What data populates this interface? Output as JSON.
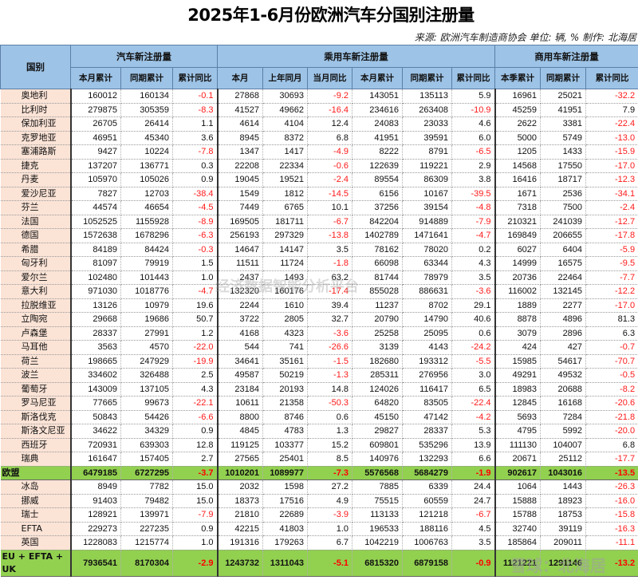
{
  "title": "2025年1-6月份欧洲汽车分国别注册量",
  "source": "来源: 欧洲汽车制造商协会 单位: 辆, % 制作: 北海居",
  "header": {
    "country": "国别",
    "groups": [
      "汽车新注册量",
      "乘用车新注册量",
      "商用车新注册量"
    ],
    "subcolumns": [
      "本月累计",
      "同期累计",
      "累计同比",
      "本月",
      "上年同月",
      "当月同比",
      "本月累计",
      "同期累计",
      "累计同比",
      "本季累计",
      "同期累计",
      "累计同比"
    ]
  },
  "rows": [
    {
      "name": "奥地利",
      "v": [
        "160012",
        "160134",
        "-0.1",
        "27868",
        "30693",
        "-9.2",
        "143051",
        "135113",
        "5.9",
        "16961",
        "25021",
        "-32.2"
      ]
    },
    {
      "name": "比利时",
      "v": [
        "279875",
        "305359",
        "-8.3",
        "41527",
        "49662",
        "-16.4",
        "234616",
        "263408",
        "-10.9",
        "45259",
        "41951",
        "7.9"
      ]
    },
    {
      "name": "保加利亚",
      "v": [
        "26705",
        "26414",
        "1.1",
        "4614",
        "4104",
        "12.4",
        "24083",
        "23033",
        "4.6",
        "2622",
        "3381",
        "-22.4"
      ]
    },
    {
      "name": "克罗地亚",
      "v": [
        "46951",
        "45340",
        "3.6",
        "8945",
        "8372",
        "6.8",
        "41951",
        "39591",
        "6.0",
        "5000",
        "5749",
        "-13.0"
      ]
    },
    {
      "name": "塞浦路斯",
      "v": [
        "9427",
        "10224",
        "-7.8",
        "1347",
        "1417",
        "-4.9",
        "8222",
        "8791",
        "-6.5",
        "1205",
        "1433",
        "-15.9"
      ]
    },
    {
      "name": "捷克",
      "v": [
        "137207",
        "136771",
        "0.3",
        "22208",
        "22334",
        "-0.6",
        "122639",
        "119221",
        "2.9",
        "14568",
        "17550",
        "-17.0"
      ]
    },
    {
      "name": "丹麦",
      "v": [
        "105970",
        "105026",
        "0.9",
        "19045",
        "19521",
        "-2.4",
        "89554",
        "86309",
        "3.8",
        "16416",
        "18717",
        "-12.3"
      ]
    },
    {
      "name": "爱沙尼亚",
      "v": [
        "7827",
        "12703",
        "-38.4",
        "1549",
        "1812",
        "-14.5",
        "6156",
        "10167",
        "-39.5",
        "1671",
        "2536",
        "-34.1"
      ]
    },
    {
      "name": "芬兰",
      "v": [
        "44574",
        "46654",
        "-4.5",
        "7449",
        "6765",
        "10.1",
        "37256",
        "39154",
        "-4.8",
        "7318",
        "7500",
        "-2.4"
      ]
    },
    {
      "name": "法国",
      "v": [
        "1052525",
        "1155928",
        "-8.9",
        "169505",
        "181711",
        "-6.7",
        "842204",
        "914889",
        "-7.9",
        "210321",
        "241039",
        "-12.7"
      ]
    },
    {
      "name": "德国",
      "v": [
        "1572638",
        "1678296",
        "-6.3",
        "256193",
        "297329",
        "-13.8",
        "1402789",
        "1471641",
        "-4.7",
        "169849",
        "206655",
        "-17.8"
      ]
    },
    {
      "name": "希腊",
      "v": [
        "84189",
        "84424",
        "-0.3",
        "14647",
        "14147",
        "3.5",
        "78162",
        "78020",
        "0.2",
        "6027",
        "6404",
        "-5.9"
      ]
    },
    {
      "name": "匈牙利",
      "v": [
        "81097",
        "79919",
        "1.5",
        "11511",
        "11724",
        "-1.8",
        "66098",
        "63344",
        "4.3",
        "14999",
        "16575",
        "-9.5"
      ]
    },
    {
      "name": "爱尔兰",
      "v": [
        "102480",
        "101443",
        "1.0",
        "2437",
        "1493",
        "63.2",
        "81744",
        "78979",
        "3.5",
        "20736",
        "22464",
        "-7.7"
      ]
    },
    {
      "name": "意大利",
      "v": [
        "971030",
        "1018776",
        "-4.7",
        "132320",
        "160176",
        "-17.4",
        "855028",
        "886631",
        "-3.6",
        "116002",
        "132145",
        "-12.2"
      ]
    },
    {
      "name": "拉脱维亚",
      "v": [
        "13126",
        "10979",
        "19.6",
        "2244",
        "1610",
        "39.4",
        "11237",
        "8702",
        "29.1",
        "1889",
        "2277",
        "-17.0"
      ]
    },
    {
      "name": "立陶宛",
      "v": [
        "29668",
        "19686",
        "50.7",
        "3722",
        "2805",
        "32.7",
        "20790",
        "14790",
        "40.6",
        "8878",
        "4896",
        "81.3"
      ]
    },
    {
      "name": "卢森堡",
      "v": [
        "28337",
        "27991",
        "1.2",
        "4168",
        "4323",
        "-3.6",
        "25258",
        "25095",
        "0.6",
        "3079",
        "2896",
        "6.3"
      ]
    },
    {
      "name": "马耳他",
      "v": [
        "3563",
        "4570",
        "-22.0",
        "544",
        "741",
        "-26.6",
        "3139",
        "4143",
        "-24.2",
        "424",
        "427",
        "-0.7"
      ]
    },
    {
      "name": "荷兰",
      "v": [
        "198665",
        "247929",
        "-19.9",
        "34641",
        "35161",
        "-1.5",
        "182680",
        "193312",
        "-5.5",
        "15985",
        "54617",
        "-70.7"
      ]
    },
    {
      "name": "波兰",
      "v": [
        "334602",
        "326488",
        "2.5",
        "49587",
        "50219",
        "-1.3",
        "285311",
        "276956",
        "3.0",
        "49291",
        "49532",
        "-0.5"
      ]
    },
    {
      "name": "葡萄牙",
      "v": [
        "143009",
        "137105",
        "4.3",
        "23184",
        "20193",
        "14.8",
        "124026",
        "116417",
        "6.5",
        "18983",
        "20688",
        "-8.2"
      ]
    },
    {
      "name": "罗马尼亚",
      "v": [
        "77665",
        "99673",
        "-22.1",
        "10611",
        "21358",
        "-50.3",
        "64820",
        "83505",
        "-22.4",
        "12845",
        "16168",
        "-20.6"
      ]
    },
    {
      "name": "斯洛伐克",
      "v": [
        "50843",
        "54426",
        "-6.6",
        "8800",
        "8746",
        "0.6",
        "45150",
        "47142",
        "-4.2",
        "5693",
        "7284",
        "-21.8"
      ]
    },
    {
      "name": "斯洛文尼亚",
      "v": [
        "34622",
        "34329",
        "0.9",
        "4845",
        "4783",
        "1.3",
        "29827",
        "28337",
        "5.3",
        "4795",
        "5992",
        "-20.0"
      ]
    },
    {
      "name": "西班牙",
      "v": [
        "720931",
        "639303",
        "12.8",
        "119125",
        "103377",
        "15.2",
        "609801",
        "535296",
        "13.9",
        "111130",
        "104007",
        "6.8"
      ]
    },
    {
      "name": "瑞典",
      "v": [
        "161647",
        "157405",
        "2.7",
        "27565",
        "25401",
        "8.5",
        "140976",
        "132293",
        "6.6",
        "20671",
        "25112",
        "-17.7"
      ]
    },
    {
      "name": "欧盟",
      "total": true,
      "v": [
        "6479185",
        "6727295",
        "-3.7",
        "1010201",
        "1089977",
        "-7.3",
        "5576568",
        "5684279",
        "-1.9",
        "902617",
        "1043016",
        "-13.5"
      ]
    },
    {
      "name": "冰岛",
      "v": [
        "8949",
        "7782",
        "15.0",
        "2032",
        "1598",
        "27.2",
        "7885",
        "6339",
        "24.4",
        "1064",
        "1443",
        "-26.3"
      ]
    },
    {
      "name": "挪威",
      "v": [
        "91403",
        "79482",
        "15.0",
        "18373",
        "17516",
        "4.9",
        "75515",
        "60559",
        "24.7",
        "15888",
        "18923",
        "-16.0"
      ]
    },
    {
      "name": "瑞士",
      "v": [
        "128921",
        "139971",
        "-7.9",
        "21810",
        "22689",
        "-3.9",
        "113133",
        "121218",
        "-6.7",
        "15788",
        "18753",
        "-15.8"
      ]
    },
    {
      "name": "EFTA",
      "v": [
        "229273",
        "227235",
        "0.9",
        "42215",
        "41803",
        "1.0",
        "196533",
        "188116",
        "4.5",
        "32740",
        "39119",
        "-16.3"
      ]
    },
    {
      "name": "英国",
      "v": [
        "1228083",
        "1215774",
        "1.0",
        "191316",
        "179263",
        "6.7",
        "1042219",
        "1006763",
        "3.5",
        "185864",
        "209011",
        "-11.1"
      ]
    },
    {
      "name": "EU + EFTA + UK",
      "total": true,
      "v": [
        "7936541",
        "8170304",
        "-2.9",
        "1243732",
        "1311043",
        "-5.1",
        "6815320",
        "6879158",
        "-0.9",
        "1121221",
        "1291146",
        "-13.2"
      ]
    }
  ],
  "watermarks": [
    "经济数据智能分析平台",
    "雪球：北海居"
  ],
  "colors": {
    "header_bg": "#9dc3e6",
    "country_bg": "#fbe3d6",
    "total_bg": "#92d050",
    "negative": "#ff1a1a"
  }
}
